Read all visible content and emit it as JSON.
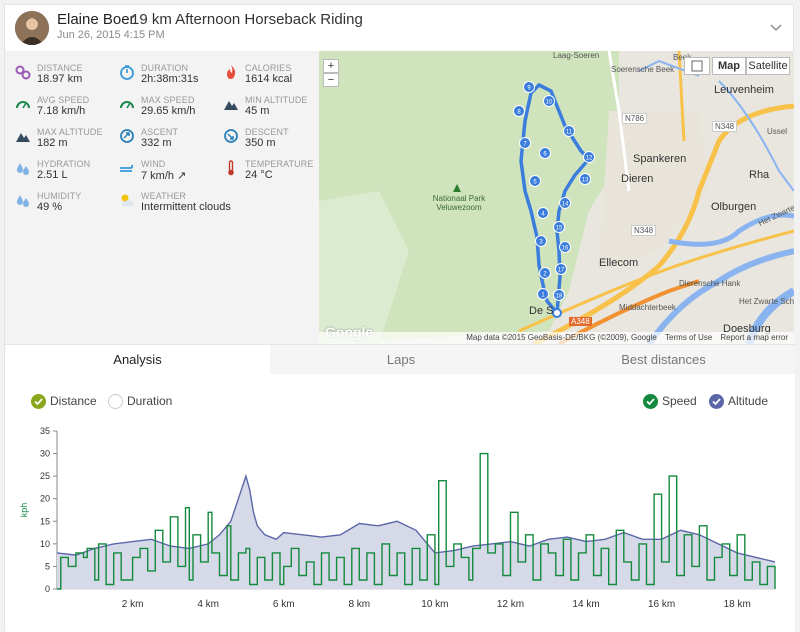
{
  "header": {
    "user_name": "Elaine Boer",
    "title": "19 km Afternoon Horseback Riding",
    "date": "Jun 26, 2015 4:15 PM"
  },
  "stats": [
    {
      "icon": "distance-icon",
      "label": "DISTANCE",
      "value": "18.97 km",
      "color": "#9b59b6"
    },
    {
      "icon": "duration-icon",
      "label": "DURATION",
      "value": "2h:38m:31s",
      "color": "#3498db"
    },
    {
      "icon": "calories-icon",
      "label": "CALORIES",
      "value": "1614 kcal",
      "color": "#e74c3c"
    },
    {
      "icon": "avg-speed-icon",
      "label": "AVG SPEED",
      "value": "7.18 km/h",
      "color": "#1e8a4c"
    },
    {
      "icon": "max-speed-icon",
      "label": "MAX SPEED",
      "value": "29.65 km/h",
      "color": "#1e8a4c"
    },
    {
      "icon": "min-altitude-icon",
      "label": "MIN ALTITUDE",
      "value": "45 m",
      "color": "#34495e"
    },
    {
      "icon": "max-altitude-icon",
      "label": "MAX ALTITUDE",
      "value": "182 m",
      "color": "#34495e"
    },
    {
      "icon": "ascent-icon",
      "label": "ASCENT",
      "value": "332 m",
      "color": "#2980b9"
    },
    {
      "icon": "descent-icon",
      "label": "DESCENT",
      "value": "350 m",
      "color": "#2980b9"
    },
    {
      "icon": "hydration-icon",
      "label": "HYDRATION",
      "value": "2.51 L",
      "color": "#7fb3e6"
    },
    {
      "icon": "wind-icon",
      "label": "WIND",
      "value": "7 km/h ↗",
      "color": "#3498db"
    },
    {
      "icon": "temperature-icon",
      "label": "TEMPERATURE",
      "value": "24 °C",
      "color": "#c0392b"
    },
    {
      "icon": "humidity-icon",
      "label": "HUMIDITY",
      "value": "49 %",
      "color": "#7fb3e6"
    },
    {
      "icon": "weather-icon",
      "label": "WEATHER",
      "value": "Intermittent clouds",
      "color": "#f1c40f"
    }
  ],
  "map": {
    "zoom_in": "+",
    "zoom_out": "−",
    "type_map": "Map",
    "type_satellite": "Satellite",
    "google": "Google",
    "footer_data": "Map data ©2015 GeoBasis-DE/BKG (©2009), Google",
    "footer_terms": "Terms of Use",
    "footer_report": "Report a map error",
    "places": {
      "laag_soeren": "Laag-Soeren",
      "soerensche_beek": "Soerensche Beek",
      "leuvenheim": "Leuvenheim",
      "n786": "N786",
      "n348_top": "N348",
      "lssel": "Ussel",
      "spankeren": "Spankeren",
      "dieren": "Dieren",
      "rha": "Rha",
      "olburgen": "Olburgen",
      "park": "Nationaal Park Veluwezoom",
      "n348_mid": "N348",
      "ellecom": "Ellecom",
      "dierensche_hank": "Dierensche Hank",
      "het_zwarte_schaar": "Het Zwarte Schaar",
      "middachterbeek": "Middachterbeek",
      "de_s": "De S",
      "a348": "A348",
      "doesburg": "Doesburg",
      "het_zwarte_water": "Het Zwarte",
      "beek": "Beek"
    },
    "route_markers": [
      "1",
      "2",
      "3",
      "4",
      "5",
      "6",
      "7",
      "8",
      "9",
      "10",
      "11",
      "12",
      "13",
      "14",
      "15",
      "16",
      "17",
      "18"
    ],
    "route_color": "#3b7ddd"
  },
  "tabs": {
    "analysis": "Analysis",
    "laps": "Laps",
    "best": "Best distances"
  },
  "legend": {
    "distance": "Distance",
    "duration": "Duration",
    "speed": "Speed",
    "altitude": "Altitude"
  },
  "chart_data": {
    "type": "line",
    "title": "",
    "xlabel": "",
    "ylabel": "kph",
    "xlim": [
      0,
      19
    ],
    "ylim": [
      0,
      35
    ],
    "yticks": [
      0,
      5,
      10,
      15,
      20,
      25,
      30,
      35
    ],
    "xticks": [
      "2 km",
      "4 km",
      "6 km",
      "8 km",
      "10 km",
      "12 km",
      "14 km",
      "16 km",
      "18 km"
    ],
    "xtick_values": [
      2,
      4,
      6,
      8,
      10,
      12,
      14,
      16,
      18
    ],
    "series": [
      {
        "name": "Altitude",
        "color": "#5b67a8",
        "fill": "#d6d9e8",
        "x": [
          0,
          0.5,
          1,
          1.5,
          2,
          2.5,
          3,
          3.5,
          4,
          4.3,
          4.6,
          4.8,
          5,
          5.1,
          5.2,
          5.3,
          5.5,
          5.8,
          6,
          6.5,
          7,
          7.5,
          8,
          8.5,
          9,
          9.5,
          10,
          10.5,
          11,
          11.5,
          12,
          12.5,
          13,
          13.5,
          14,
          14.5,
          15,
          15.5,
          16,
          16.5,
          17,
          17.5,
          18,
          18.5,
          19
        ],
        "values": [
          8,
          7.5,
          9,
          10,
          10.5,
          11,
          9.5,
          9,
          10,
          12,
          15,
          20,
          25,
          22,
          17,
          14,
          12,
          11,
          12.5,
          12,
          11.5,
          12,
          14.5,
          14,
          15,
          13,
          8,
          8.5,
          9.5,
          10,
          10.5,
          9.5,
          11,
          11.5,
          10.5,
          11,
          12.5,
          11,
          11,
          13,
          12,
          10,
          8,
          7,
          6
        ]
      },
      {
        "name": "Speed",
        "color": "#138a3d",
        "x": [
          0,
          0.1,
          0.3,
          0.5,
          0.7,
          0.8,
          1,
          1.1,
          1.3,
          1.5,
          1.7,
          2,
          2.2,
          2.4,
          2.6,
          2.8,
          3,
          3.2,
          3.4,
          3.5,
          3.6,
          3.8,
          4,
          4.1,
          4.3,
          4.5,
          4.6,
          4.8,
          5,
          5.1,
          5.3,
          5.5,
          5.7,
          5.9,
          6,
          6.2,
          6.4,
          6.6,
          6.8,
          7,
          7.2,
          7.4,
          7.6,
          7.8,
          8,
          8.2,
          8.4,
          8.6,
          8.8,
          9,
          9.2,
          9.4,
          9.6,
          9.8,
          10,
          10.1,
          10.3,
          10.5,
          10.7,
          10.9,
          11,
          11.2,
          11.4,
          11.6,
          11.8,
          12,
          12.2,
          12.4,
          12.6,
          12.8,
          13,
          13.2,
          13.4,
          13.6,
          13.8,
          14,
          14.2,
          14.4,
          14.6,
          14.8,
          15,
          15.2,
          15.4,
          15.6,
          15.8,
          16,
          16.2,
          16.4,
          16.6,
          16.8,
          17,
          17.2,
          17.4,
          17.6,
          17.8,
          18,
          18.2,
          18.4,
          18.6,
          18.8,
          19
        ],
        "values": [
          0,
          7,
          5,
          8,
          7,
          9,
          2,
          10,
          1,
          8,
          2,
          7,
          9,
          4,
          13,
          6,
          16,
          5,
          18,
          2,
          12,
          6,
          17,
          8,
          3,
          14,
          2,
          8,
          9,
          1,
          7,
          2,
          8,
          1,
          5,
          9,
          3,
          6,
          1,
          8,
          2,
          7,
          1,
          9,
          2,
          8,
          1,
          10,
          3,
          8,
          1,
          9,
          2,
          12,
          1,
          24,
          5,
          10,
          7,
          2,
          9,
          30,
          8,
          10,
          3,
          17,
          6,
          12,
          2,
          10,
          8,
          3,
          11,
          2,
          8,
          12,
          3,
          9,
          1,
          13,
          6,
          2,
          10,
          1,
          21,
          6,
          25,
          3,
          12,
          5,
          14,
          2,
          7,
          10,
          3,
          12,
          2,
          6,
          1,
          5,
          0
        ]
      }
    ]
  }
}
